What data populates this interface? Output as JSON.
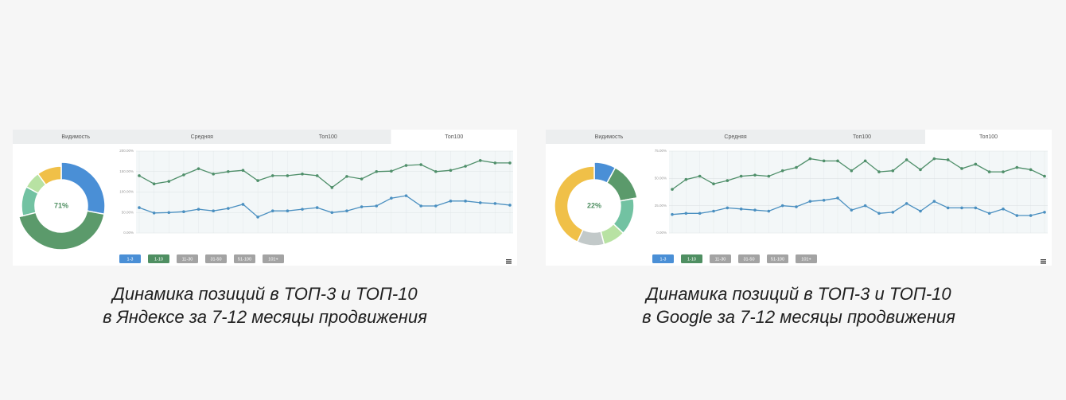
{
  "panels": [
    {
      "tabs": [
        "Видимость",
        "Средняя",
        "Топ100",
        "Топ100"
      ],
      "button_colors": [
        "#4a8fd6",
        "#4f8f62",
        "#a3a3a3",
        "#a3a3a3",
        "#a3a3a3",
        "#a3a3a3"
      ],
      "caption": [
        "Динамика позиций в ТОП-3 и ТОП-10",
        "в Яндексе за 7-12 месяцы продвижения"
      ]
    },
    {
      "tabs": [
        "Видимость",
        "Средняя",
        "Топ100",
        "Топ100"
      ],
      "button_colors": [
        "#4a8fd6",
        "#4f8f62",
        "#a3a3a3",
        "#a3a3a3",
        "#a3a3a3",
        "#a3a3a3"
      ],
      "caption": [
        "Динамика позиций в ТОП-3 и ТОП-10",
        "в Google за 7-12 месяцы продвижения"
      ]
    }
  ],
  "chart_data": [
    {
      "type": "pie",
      "center_label": "71%",
      "categories": [
        "1-3",
        "1-10",
        "11-30",
        "31-50",
        "51-100",
        "101+"
      ],
      "values": [
        28,
        43,
        12,
        7,
        0,
        10
      ],
      "colors": [
        "#4a8fd6",
        "#5b9a6b",
        "#72c2a2",
        "#b8e2a3",
        "#c2c9c9",
        "#f0c048"
      ]
    },
    {
      "type": "line",
      "categories": [
        null,
        null,
        null,
        null,
        null,
        null,
        null,
        null,
        null,
        null,
        null,
        null,
        null,
        null,
        null,
        null,
        null,
        null,
        null,
        null,
        null,
        null,
        null,
        null,
        null,
        null
      ],
      "ylim": [
        0,
        200
      ],
      "yticks": [
        {
          "value": 0,
          "label": "0.00%"
        },
        {
          "value": 50,
          "label": "50.00%"
        },
        {
          "value": 100,
          "label": "100.00%"
        },
        {
          "value": 150,
          "label": "150.00%"
        },
        {
          "value": 200,
          "label": "200.00%"
        }
      ],
      "grid": true,
      "series": [
        {
          "color": "#4f8f6a",
          "values": [
            140,
            120,
            126,
            142,
            157,
            144,
            150,
            153,
            128,
            140,
            140,
            144,
            140,
            111,
            138,
            132,
            150,
            151,
            165,
            167,
            150,
            153,
            163,
            177,
            171,
            171
          ]
        },
        {
          "color": "#4a8fc0",
          "values": [
            62,
            49,
            50,
            52,
            58,
            54,
            60,
            70,
            39,
            54,
            54,
            58,
            62,
            50,
            54,
            64,
            66,
            85,
            91,
            66,
            66,
            78,
            78,
            74,
            72,
            68
          ]
        }
      ]
    },
    {
      "type": "pie",
      "center_label": "22%",
      "categories": [
        "1-3",
        "1-10",
        "11-30",
        "31-50",
        "51-100",
        "101+"
      ],
      "values": [
        8,
        14,
        15,
        9,
        11,
        43
      ],
      "colors": [
        "#4a8fd6",
        "#5b9a6b",
        "#72c2a2",
        "#b8e2a3",
        "#c2c9c9",
        "#f0c048"
      ]
    },
    {
      "type": "line",
      "categories": [
        null,
        null,
        null,
        null,
        null,
        null,
        null,
        null,
        null,
        null,
        null,
        null,
        null,
        null,
        null,
        null,
        null,
        null,
        null,
        null,
        null,
        null,
        null,
        null,
        null,
        null,
        null,
        null
      ],
      "ylim": [
        0,
        75
      ],
      "yticks": [
        {
          "value": 0,
          "label": "0.00%"
        },
        {
          "value": 25,
          "label": "25.00%"
        },
        {
          "value": 50,
          "label": "50.00%"
        },
        {
          "value": 75,
          "label": "75.00%"
        }
      ],
      "grid": true,
      "series": [
        {
          "color": "#4f8f6a",
          "values": [
            40,
            49,
            52,
            45,
            48,
            52,
            53,
            52,
            57,
            60,
            68,
            66,
            66,
            57,
            66,
            56,
            57,
            67,
            58,
            68,
            67,
            59,
            63,
            56,
            56,
            60,
            58,
            52
          ]
        },
        {
          "color": "#4a8fc0",
          "values": [
            17,
            18,
            18,
            20,
            23,
            22,
            21,
            20,
            25,
            24,
            29,
            30,
            32,
            21,
            25,
            18,
            19,
            27,
            20,
            29,
            23,
            23,
            23,
            18,
            22,
            16,
            16,
            19
          ]
        }
      ]
    }
  ]
}
